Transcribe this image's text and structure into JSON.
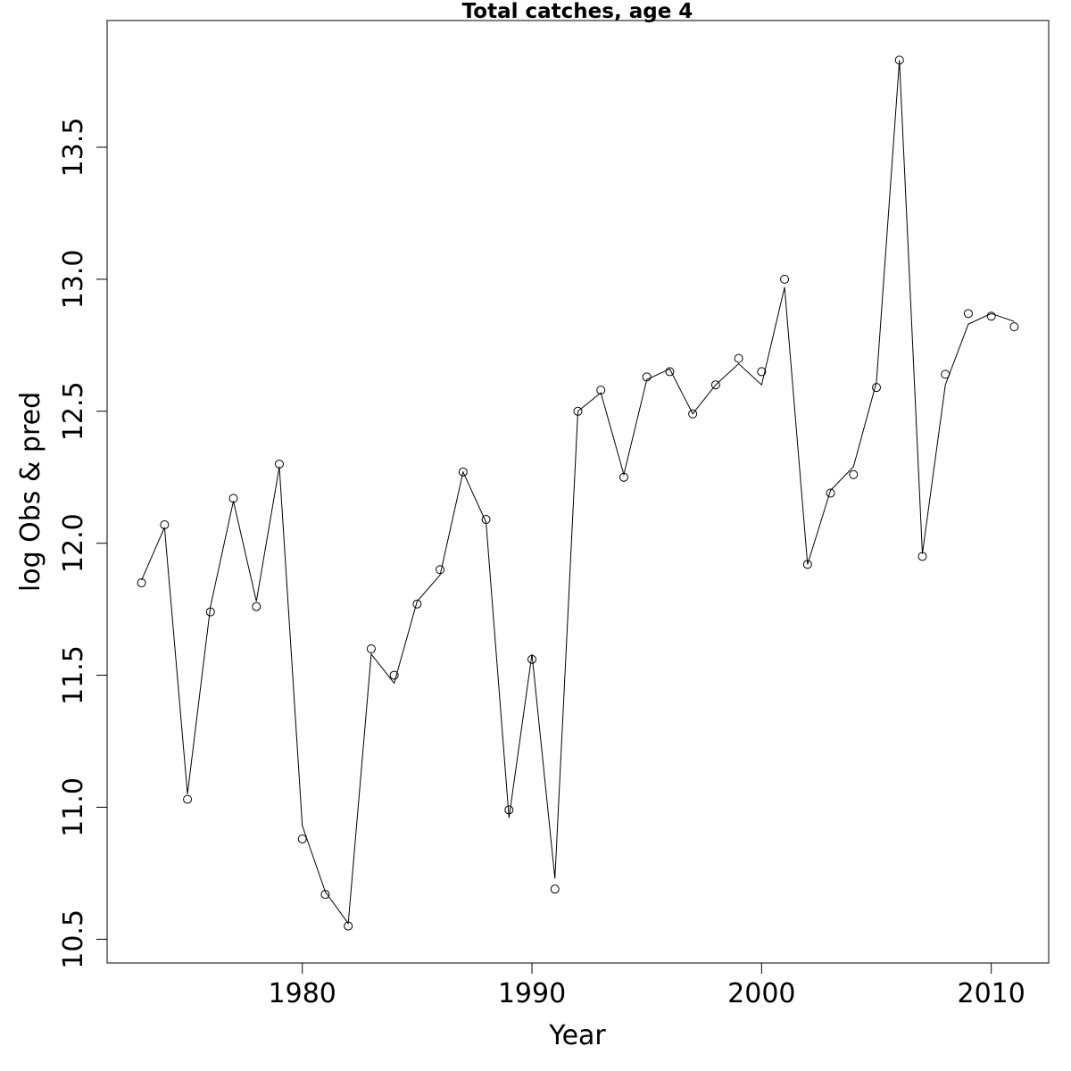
{
  "chart_data": {
    "type": "line",
    "title": "Total catches, age 4",
    "xlabel": "Year",
    "ylabel": "log Obs & pred",
    "xlim": [
      1971.5,
      2012.5
    ],
    "ylim": [
      10.41,
      13.98
    ],
    "x_ticks": [
      1980,
      1990,
      2000,
      2010
    ],
    "y_ticks": [
      10.5,
      11.0,
      11.5,
      12.0,
      12.5,
      13.0,
      13.5
    ],
    "x_tick_labels": [
      "1980",
      "1990",
      "2000",
      "2010"
    ],
    "y_tick_labels": [
      "10.5",
      "11.0",
      "11.5",
      "12.0",
      "12.5",
      "13.0",
      "13.5"
    ],
    "grid": false,
    "legend": "none",
    "x": [
      1973,
      1974,
      1975,
      1976,
      1977,
      1978,
      1979,
      1980,
      1981,
      1982,
      1983,
      1984,
      1985,
      1986,
      1987,
      1988,
      1989,
      1990,
      1991,
      1992,
      1993,
      1994,
      1995,
      1996,
      1997,
      1998,
      1999,
      2000,
      2001,
      2002,
      2003,
      2004,
      2005,
      2006,
      2007,
      2008,
      2009,
      2010,
      2011
    ],
    "series": [
      {
        "style": "points",
        "values": [
          11.85,
          12.07,
          11.03,
          11.74,
          12.17,
          11.76,
          12.3,
          10.88,
          10.67,
          10.55,
          11.6,
          11.5,
          11.77,
          11.9,
          12.27,
          12.09,
          10.99,
          11.56,
          10.69,
          12.5,
          12.58,
          12.25,
          12.63,
          12.65,
          12.49,
          12.6,
          12.7,
          12.65,
          13.0,
          11.92,
          12.19,
          12.26,
          12.59,
          13.83,
          11.95,
          12.64,
          12.87,
          12.86,
          12.82
        ]
      },
      {
        "style": "line",
        "values": [
          11.86,
          12.06,
          11.05,
          11.76,
          12.16,
          11.78,
          12.29,
          10.93,
          10.68,
          10.56,
          11.58,
          11.47,
          11.78,
          11.88,
          12.27,
          12.08,
          10.96,
          11.58,
          10.73,
          12.5,
          12.57,
          12.26,
          12.62,
          12.66,
          12.49,
          12.6,
          12.68,
          12.6,
          12.97,
          11.92,
          12.2,
          12.29,
          12.61,
          13.83,
          11.96,
          12.6,
          12.83,
          12.87,
          12.84
        ]
      }
    ]
  }
}
